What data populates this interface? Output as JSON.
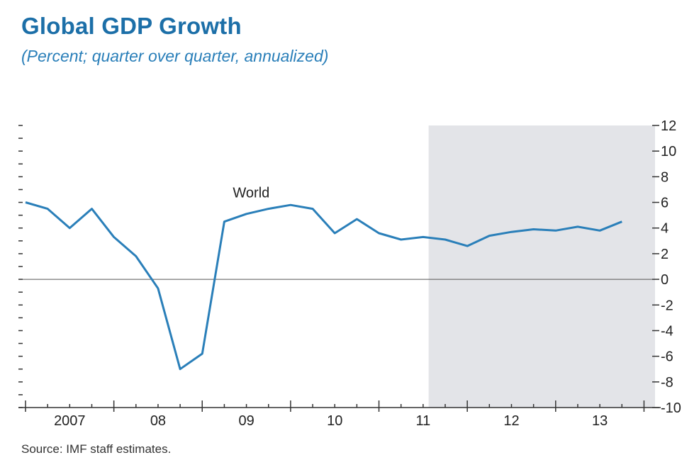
{
  "colors": {
    "title": "#1c6fa8",
    "line": "#2a7fb9",
    "shade": "#e3e4e8",
    "axis": "#333333"
  },
  "chart_data": {
    "type": "line",
    "title": "Global GDP Growth",
    "subtitle": "(Percent; quarter over quarter, annualized)",
    "source": "Source: IMF staff estimates.",
    "xlabel": "",
    "ylabel": "",
    "y_axis_position": "right",
    "ylim": [
      -10,
      12
    ],
    "yticks": [
      12,
      10,
      8,
      6,
      4,
      2,
      0,
      -2,
      -4,
      -6,
      -8,
      -10
    ],
    "x_labels": [
      "2007",
      "08",
      "09",
      "10",
      "11",
      "12",
      "13"
    ],
    "x_start_year": 2007,
    "grid": false,
    "zero_line": true,
    "forecast_shade": {
      "from_quarter": "2011:Q4",
      "to_quarter": "2013:Q4"
    },
    "series": [
      {
        "name": "World",
        "x": [
          "2007:Q1",
          "2007:Q2",
          "2007:Q3",
          "2007:Q4",
          "2008:Q1",
          "2008:Q2",
          "2008:Q3",
          "2008:Q4",
          "2009:Q1",
          "2009:Q2",
          "2009:Q3",
          "2009:Q4",
          "2010:Q1",
          "2010:Q2",
          "2010:Q3",
          "2010:Q4",
          "2011:Q1",
          "2011:Q2",
          "2011:Q3",
          "2011:Q4",
          "2012:Q1",
          "2012:Q2",
          "2012:Q3",
          "2012:Q4",
          "2013:Q1",
          "2013:Q2",
          "2013:Q3",
          "2013:Q4"
        ],
        "values": [
          6.0,
          5.5,
          4.0,
          5.5,
          3.3,
          1.8,
          -0.7,
          -7.0,
          -5.8,
          4.5,
          5.1,
          5.5,
          5.8,
          5.5,
          3.6,
          4.7,
          3.6,
          3.1,
          3.3,
          3.1,
          2.6,
          3.4,
          3.7,
          3.9,
          3.8,
          4.1,
          3.8,
          4.5
        ]
      }
    ]
  }
}
